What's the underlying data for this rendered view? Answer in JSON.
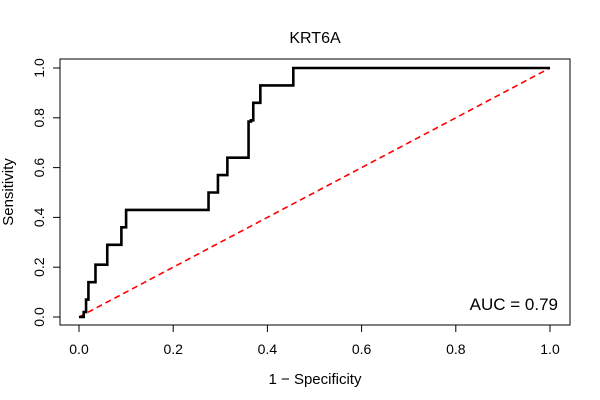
{
  "chart_data": {
    "type": "line",
    "title": "KRT6A",
    "xlabel": "1 − Specificity",
    "ylabel": "Sensitivity",
    "xlim": [
      0,
      1
    ],
    "ylim": [
      0,
      1
    ],
    "x_ticks": [
      0.0,
      0.2,
      0.4,
      0.6,
      0.8,
      1.0
    ],
    "y_ticks": [
      0.0,
      0.2,
      0.4,
      0.6,
      0.8,
      1.0
    ],
    "x_tick_labels": [
      "0.0",
      "0.2",
      "0.4",
      "0.6",
      "0.8",
      "1.0"
    ],
    "y_tick_labels": [
      "0.0",
      "0.2",
      "0.4",
      "0.6",
      "0.8",
      "1.0"
    ],
    "annotation": "AUC = 0.79",
    "series": [
      {
        "name": "ROC curve",
        "color": "#000000",
        "style": "solid",
        "x": [
          0.0,
          0.0,
          0.01,
          0.01,
          0.015,
          0.015,
          0.02,
          0.02,
          0.035,
          0.035,
          0.045,
          0.045,
          0.06,
          0.06,
          0.09,
          0.09,
          0.1,
          0.1,
          0.21,
          0.275,
          0.275,
          0.295,
          0.295,
          0.31,
          0.31,
          0.315,
          0.315,
          0.36,
          0.36,
          0.365,
          0.365,
          0.37,
          0.37,
          0.38,
          0.38,
          0.385,
          0.385,
          0.39,
          0.39,
          0.455,
          0.455,
          0.495,
          1.0
        ],
        "y": [
          0.0,
          0.0,
          0.0,
          0.02,
          0.02,
          0.07,
          0.07,
          0.14,
          0.14,
          0.21,
          0.21,
          0.21,
          0.21,
          0.29,
          0.29,
          0.36,
          0.36,
          0.43,
          0.43,
          0.43,
          0.5,
          0.5,
          0.57,
          0.57,
          0.57,
          0.57,
          0.64,
          0.64,
          0.785,
          0.785,
          0.79,
          0.79,
          0.86,
          0.86,
          0.86,
          0.86,
          0.93,
          0.93,
          0.93,
          0.93,
          1.0,
          1.0,
          1.0
        ]
      },
      {
        "name": "reference diagonal",
        "color": "#ff0000",
        "style": "dashed",
        "x": [
          0.0,
          1.0
        ],
        "y": [
          0.0,
          1.0
        ]
      }
    ]
  }
}
